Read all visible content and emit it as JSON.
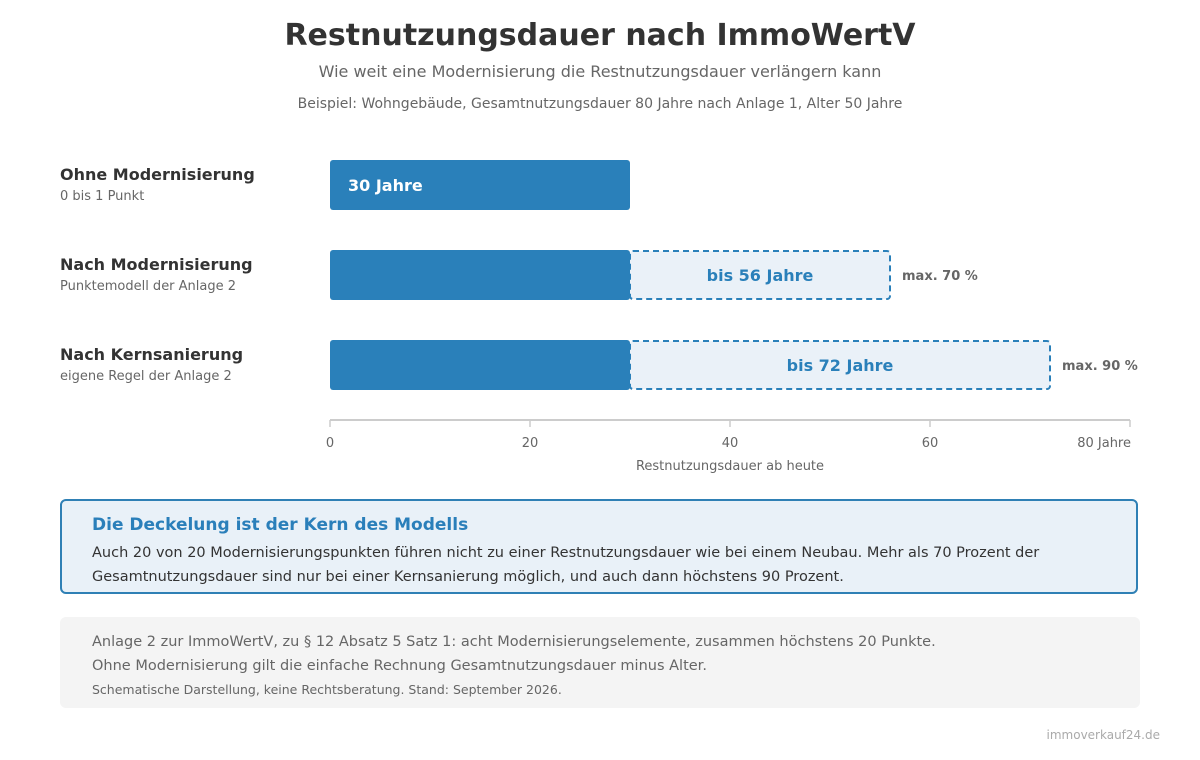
{
  "header": {
    "title": "Restnutzungsdauer nach ImmoWertV",
    "subtitle": "Wie weit eine Modernisierung die Restnutzungsdauer verlängern kann",
    "example": "Beispiel: Wohngebäude, Gesamtnutzungsdauer 80 Jahre nach Anlage 1, Alter 50 Jahre"
  },
  "rows": [
    {
      "label": "Ohne Modernisierung",
      "sublabel": "0 bis 1 Punkt"
    },
    {
      "label": "Nach Modernisierung",
      "sublabel": "Punktemodell der Anlage 2"
    },
    {
      "label": "Nach Kernsanierung",
      "sublabel": "eigene Regel der Anlage 2"
    }
  ],
  "chart_data": {
    "type": "bar",
    "orientation": "horizontal",
    "categories": [
      "Ohne Modernisierung",
      "Nach Modernisierung",
      "Nach Kernsanierung"
    ],
    "series": [
      {
        "values": [
          30,
          30,
          30
        ]
      },
      {
        "values": [
          0,
          26,
          42
        ]
      }
    ],
    "bar_labels": [
      "30 Jahre",
      "bis 56 Jahre",
      "bis 72 Jahre"
    ],
    "max_labels": [
      "",
      "max. 70 %",
      "max. 90 %"
    ],
    "xlim": [
      0,
      80
    ],
    "xticks": [
      0,
      20,
      40,
      60,
      80
    ],
    "xtick_labels": [
      "0",
      "20",
      "40",
      "60",
      "80 Jahre"
    ],
    "xlabel": "Restnutzungsdauer ab heute",
    "grid": false
  },
  "colors": {
    "bar": "#2a80ba",
    "extension_fill": "#eaf1f8",
    "extension_border": "#2a80ba",
    "axis": "#cccccc",
    "tick_text": "#666666",
    "max_text": "#666666"
  },
  "info": {
    "title": "Die Deckelung ist der Kern des Modells",
    "line1": "Auch 20 von 20 Modernisierungspunkten führen nicht zu einer Restnutzungsdauer wie bei einem Neubau. Mehr als 70 Prozent der",
    "line2": "Gesamtnutzungsdauer sind nur bei einer Kernsanierung möglich, und auch dann höchstens 90 Prozent."
  },
  "note": {
    "line1": "Anlage 2 zur ImmoWertV, zu § 12 Absatz 5 Satz 1: acht Modernisierungselemente, zusammen höchstens 20 Punkte.",
    "line2": "Ohne Modernisierung gilt die einfache Rechnung Gesamtnutzungsdauer minus Alter.",
    "line3": "Schematische Darstellung, keine Rechtsberatung. Stand: September 2026."
  },
  "source": "immoverkauf24.de"
}
